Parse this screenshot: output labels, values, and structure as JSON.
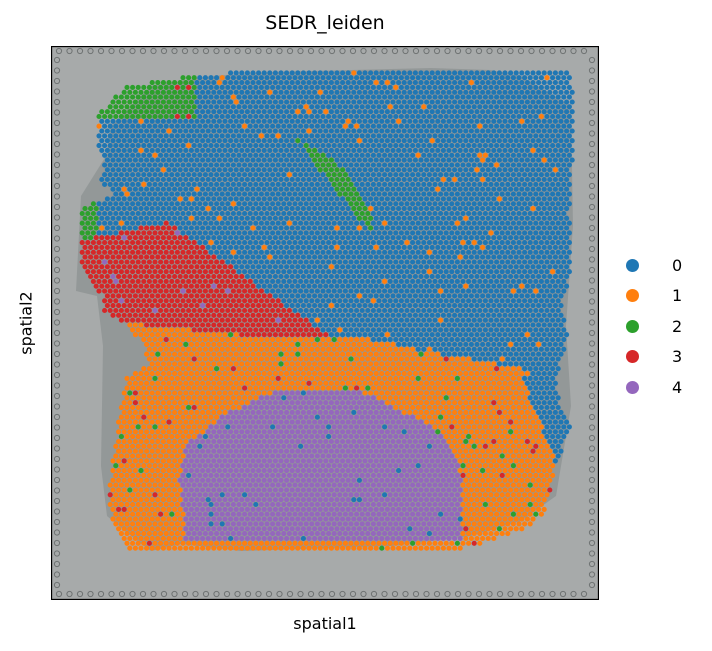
{
  "chart_data": {
    "type": "scatter",
    "title": "SEDR_leiden",
    "xlabel": "spatial1",
    "ylabel": "spatial2",
    "xticks": [],
    "yticks": [],
    "legend_position": "right",
    "background": "grayscale tissue image",
    "series": [
      {
        "name": "0",
        "color": "#1f77b4"
      },
      {
        "name": "1",
        "color": "#ff7f0e"
      },
      {
        "name": "2",
        "color": "#2ca02c"
      },
      {
        "name": "3",
        "color": "#d62728"
      },
      {
        "name": "4",
        "color": "#9467bd"
      }
    ]
  }
}
